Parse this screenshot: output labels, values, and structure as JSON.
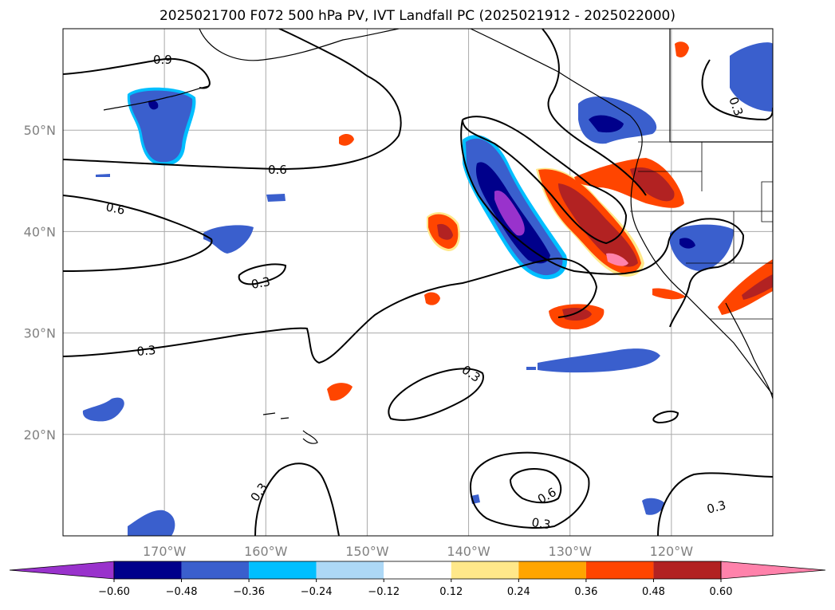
{
  "title": "2025021700 F072 500 hPa PV, IVT Landfall PC (2025021912 - 2025022000)",
  "map": {
    "lat_labels": [
      "50°N",
      "40°N",
      "30°N",
      "20°N"
    ],
    "lon_labels": [
      "170°W",
      "160°W",
      "150°W",
      "140°W",
      "130°W",
      "120°W"
    ],
    "lat_values": [
      50,
      40,
      30,
      20
    ],
    "lon_values": [
      -170,
      -160,
      -150,
      -140,
      -130,
      -120
    ],
    "extent": {
      "lon_min": -180,
      "lon_max": -110,
      "lat_min": 10,
      "lat_max": 60
    },
    "grid": true,
    "contour_labels": [
      "0.9",
      "0.6",
      "0.6",
      "0.3",
      "0.3",
      "0.3",
      "0.3",
      "0.6",
      "0.3",
      "0.3",
      "0.3"
    ]
  },
  "colorbar": {
    "ticks": [
      "−0.60",
      "−0.48",
      "−0.36",
      "−0.24",
      "−0.12",
      "0.12",
      "0.24",
      "0.36",
      "0.48",
      "0.60"
    ],
    "colors": [
      "#9932cc",
      "#00008b",
      "#3a5fcd",
      "#00bfff",
      "#add8f6",
      "#ffffff",
      "#ffe88a",
      "#ffa500",
      "#ff4500",
      "#b22222",
      "#ff82ab"
    ],
    "extend": "both"
  }
}
